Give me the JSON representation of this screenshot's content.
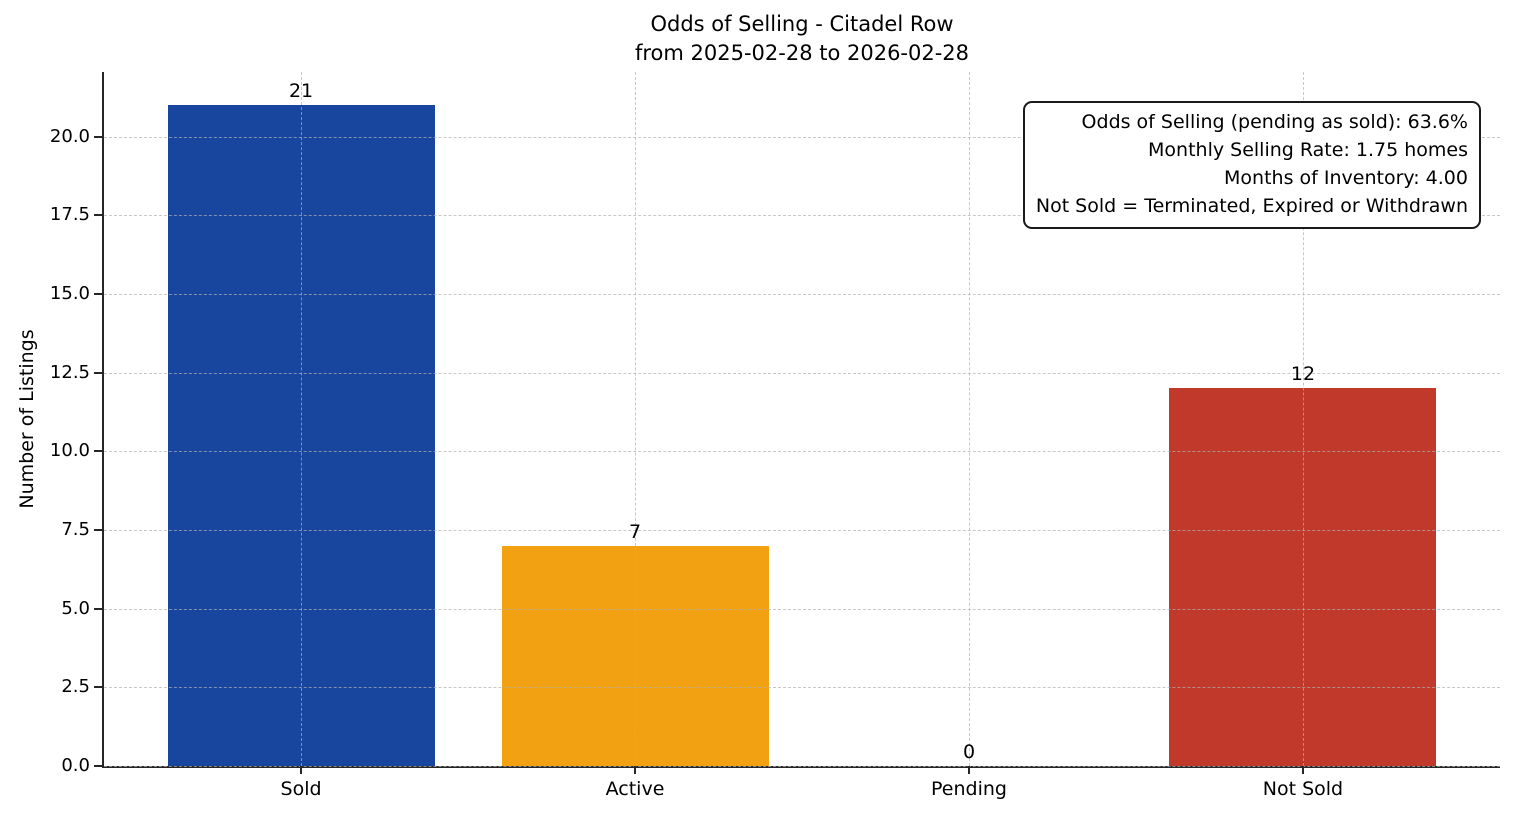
{
  "chart_data": {
    "type": "bar",
    "title": "Odds of Selling - Citadel Row",
    "subtitle": "from 2025-02-28 to 2026-02-28",
    "categories": [
      "Sold",
      "Active",
      "Pending",
      "Not Sold"
    ],
    "values": [
      21,
      7,
      0,
      12
    ],
    "value_labels": [
      "21",
      "7",
      "0",
      "12"
    ],
    "bar_colors": [
      "#18459E",
      "#F2A113",
      null,
      "#C0392B"
    ],
    "xlabel": "",
    "ylabel": "Number of Listings",
    "ylim": [
      0,
      22.05
    ],
    "yticks": [
      0,
      2.5,
      5,
      7.5,
      10,
      12.5,
      15,
      17.5,
      20
    ],
    "ytick_labels": [
      "0.0",
      "2.5",
      "5.0",
      "7.5",
      "10.0",
      "12.5",
      "15.0",
      "17.5",
      "20.0"
    ],
    "grid": true,
    "grid_style": "dashed",
    "legend": null,
    "annotation_box": {
      "lines": [
        "Odds of Selling (pending as sold): 63.6%",
        "Monthly Selling Rate: 1.75 homes",
        "Months of Inventory: 4.00",
        "Not Sold = Terminated, Expired or Withdrawn"
      ]
    },
    "colors": {
      "axis": "#262626",
      "text": "#000000",
      "grid": "#b0b0b0",
      "background": "#ffffff"
    }
  }
}
